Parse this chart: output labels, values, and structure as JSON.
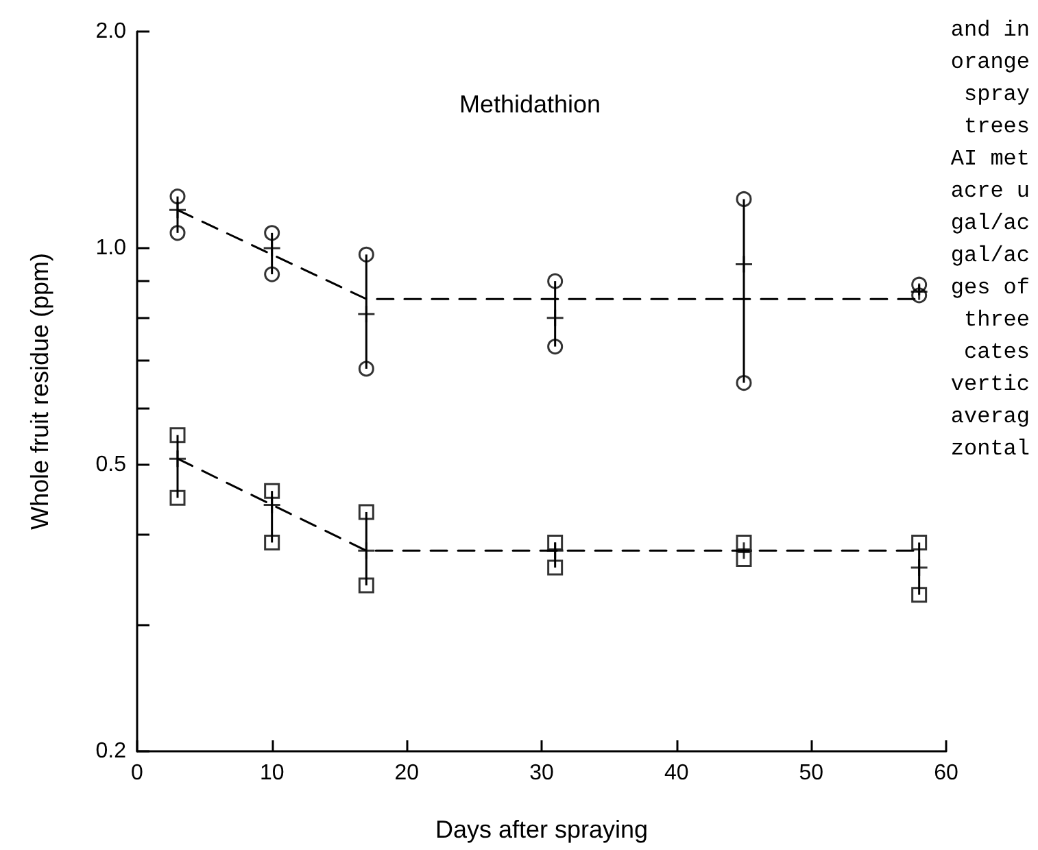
{
  "chart_data": {
    "type": "scatter",
    "title": "Methidathion",
    "xlabel": "Days after spraying",
    "ylabel": "Whole fruit residue (ppm)",
    "annotations": [
      "and in",
      "orange",
      "spray",
      "trees",
      "AI met",
      "acre u",
      "gal/ac",
      "gal/ac",
      "ges of",
      "three",
      "cates",
      "vertic",
      "averag",
      "zontal"
    ],
    "log": "y",
    "grid": false,
    "xlim": [
      0,
      60
    ],
    "xticks": [
      0,
      10,
      20,
      30,
      40,
      50,
      60
    ],
    "ylim": [
      0.2,
      2.0
    ],
    "yticks": [
      {
        "value": 0.2,
        "label": "0.2"
      },
      {
        "value": 0.3,
        "label": null
      },
      {
        "value": 0.4,
        "label": null
      },
      {
        "value": 0.5,
        "label": "0.5"
      },
      {
        "value": 0.6,
        "label": null
      },
      {
        "value": 0.7,
        "label": null
      },
      {
        "value": 0.8,
        "label": null
      },
      {
        "value": 0.9,
        "label": null
      },
      {
        "value": 1.0,
        "label": "1.0"
      },
      {
        "value": 2.0,
        "label": "2.0"
      }
    ],
    "series": [
      {
        "marker": "circle",
        "color": "#000000",
        "x": [
          3,
          10,
          17,
          31,
          45,
          58
        ],
        "values": [
          1.18,
          1.05,
          0.98,
          0.9,
          1.17,
          0.89
        ]
      },
      {
        "marker": "circle",
        "color": "#000000",
        "x": [
          3,
          10,
          17,
          31,
          45,
          58
        ],
        "values": [
          1.05,
          0.92,
          0.68,
          0.73,
          0.65,
          0.86
        ]
      },
      {
        "marker": "cross",
        "color": "#000000",
        "x": [
          3,
          10,
          17,
          31,
          45,
          58
        ],
        "values": [
          1.13,
          1.0,
          0.81,
          0.8,
          0.95,
          0.87
        ],
        "errors": [
          [
            1.05,
            1.18
          ],
          [
            0.92,
            1.05
          ],
          [
            0.68,
            0.98
          ],
          [
            0.73,
            0.9
          ],
          [
            0.65,
            1.17
          ],
          [
            0.86,
            0.89
          ]
        ]
      },
      {
        "type": "line",
        "marker": "none",
        "line_style": "dashed",
        "color": "#000000",
        "x": [
          3,
          10,
          17,
          58
        ],
        "values": [
          1.13,
          0.98,
          0.85,
          0.85
        ]
      },
      {
        "marker": "square",
        "color": "#000000",
        "x": [
          3,
          10,
          17,
          31,
          45,
          58
        ],
        "values": [
          0.55,
          0.46,
          0.43,
          0.39,
          0.39,
          0.39
        ]
      },
      {
        "marker": "square",
        "color": "#000000",
        "x": [
          3,
          10,
          17,
          31,
          45,
          58
        ],
        "values": [
          0.45,
          0.39,
          0.34,
          0.36,
          0.37,
          0.33
        ]
      },
      {
        "marker": "cross",
        "color": "#000000",
        "x": [
          3,
          10,
          17,
          31,
          45,
          58
        ],
        "values": [
          0.51,
          0.44,
          0.38,
          0.38,
          0.38,
          0.36
        ],
        "errors": [
          [
            0.45,
            0.55
          ],
          [
            0.39,
            0.46
          ],
          [
            0.34,
            0.43
          ],
          [
            0.36,
            0.39
          ],
          null,
          [
            0.33,
            0.39
          ]
        ]
      },
      {
        "type": "line",
        "marker": "none",
        "line_style": "dashed",
        "color": "#000000",
        "x": [
          3,
          10,
          17,
          58
        ],
        "values": [
          0.51,
          0.44,
          0.38,
          0.38
        ]
      }
    ]
  }
}
